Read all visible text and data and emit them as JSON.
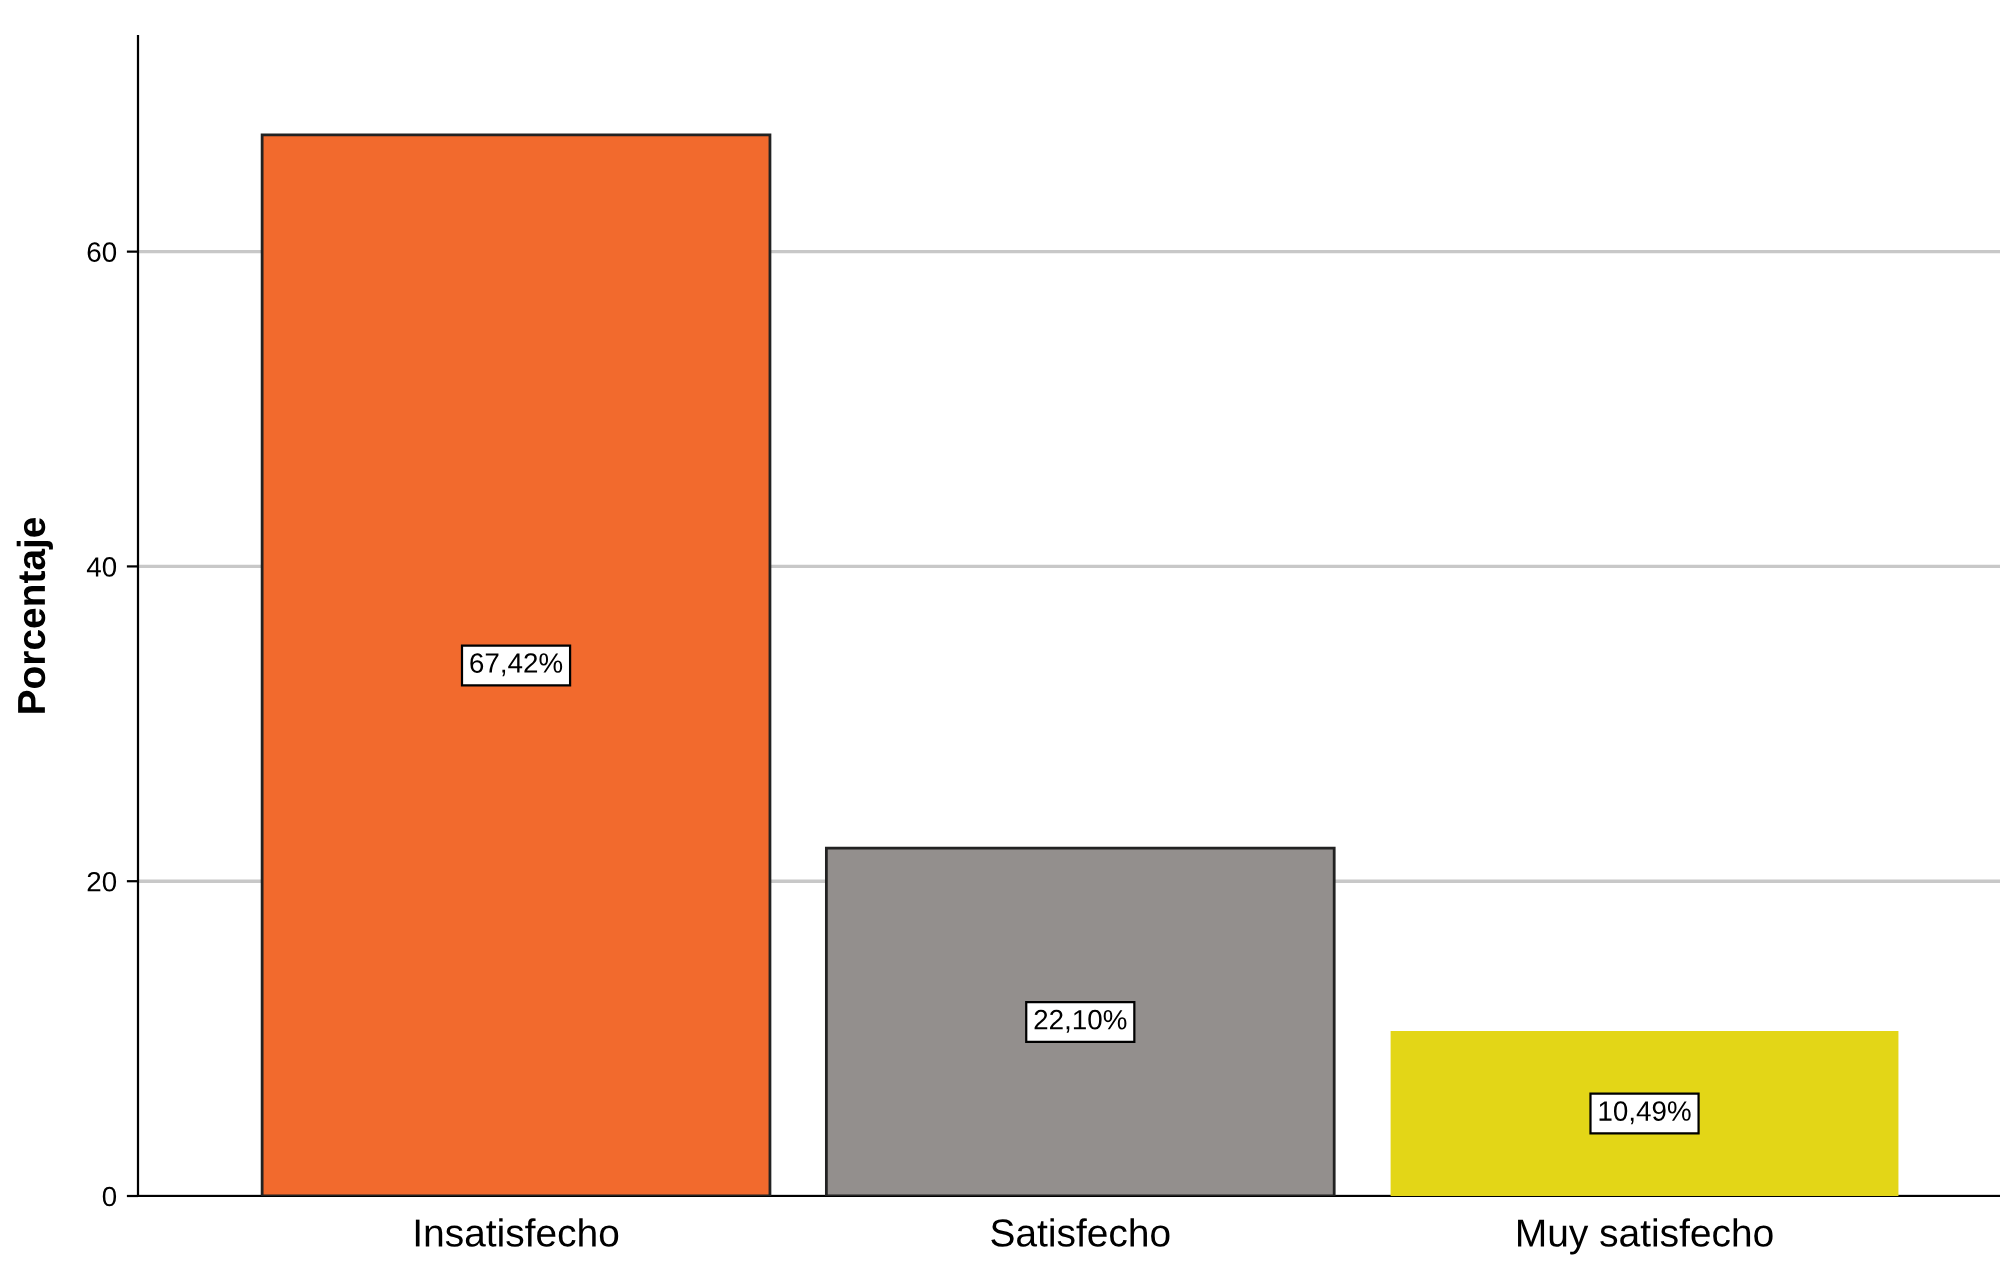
{
  "chart_data": {
    "type": "bar",
    "ylabel": "Porcentaje",
    "categories": [
      "Insatisfecho",
      "Satisfecho",
      "Muy satisfecho"
    ],
    "values": [
      67.42,
      22.1,
      10.49
    ],
    "colors": [
      "#f26a2d",
      "#938f8d",
      "#e3d617"
    ],
    "value_labels": [
      "67,42%",
      "22,10%",
      "10,49%"
    ],
    "ylim": [
      0,
      73.7
    ],
    "yticks": [
      0,
      20,
      40,
      60
    ],
    "grid": "y",
    "legend": false
  }
}
